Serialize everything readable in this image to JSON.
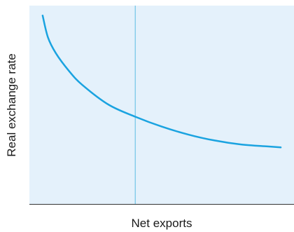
{
  "chart_data": {
    "type": "line",
    "title": "",
    "xlabel": "Net exports",
    "ylabel": "Real exchange rate",
    "grid": false,
    "legend": "none",
    "vertical_line": {
      "x": 0.4
    },
    "series": [
      {
        "x": [
          0.05,
          0.07,
          0.1,
          0.15,
          0.2,
          0.3,
          0.4,
          0.5,
          0.6,
          0.7,
          0.8,
          0.9,
          0.95
        ],
        "y": [
          0.95,
          0.84,
          0.76,
          0.67,
          0.6,
          0.5,
          0.44,
          0.39,
          0.35,
          0.32,
          0.3,
          0.29,
          0.285
        ]
      }
    ],
    "xlim": [
      0,
      1
    ],
    "ylim": [
      0,
      1
    ],
    "colors": {
      "plot_background": "#e4f1fb",
      "curve": "#1aa3e0",
      "vertical_line": "#5bbde4",
      "axis": "#333333"
    }
  }
}
